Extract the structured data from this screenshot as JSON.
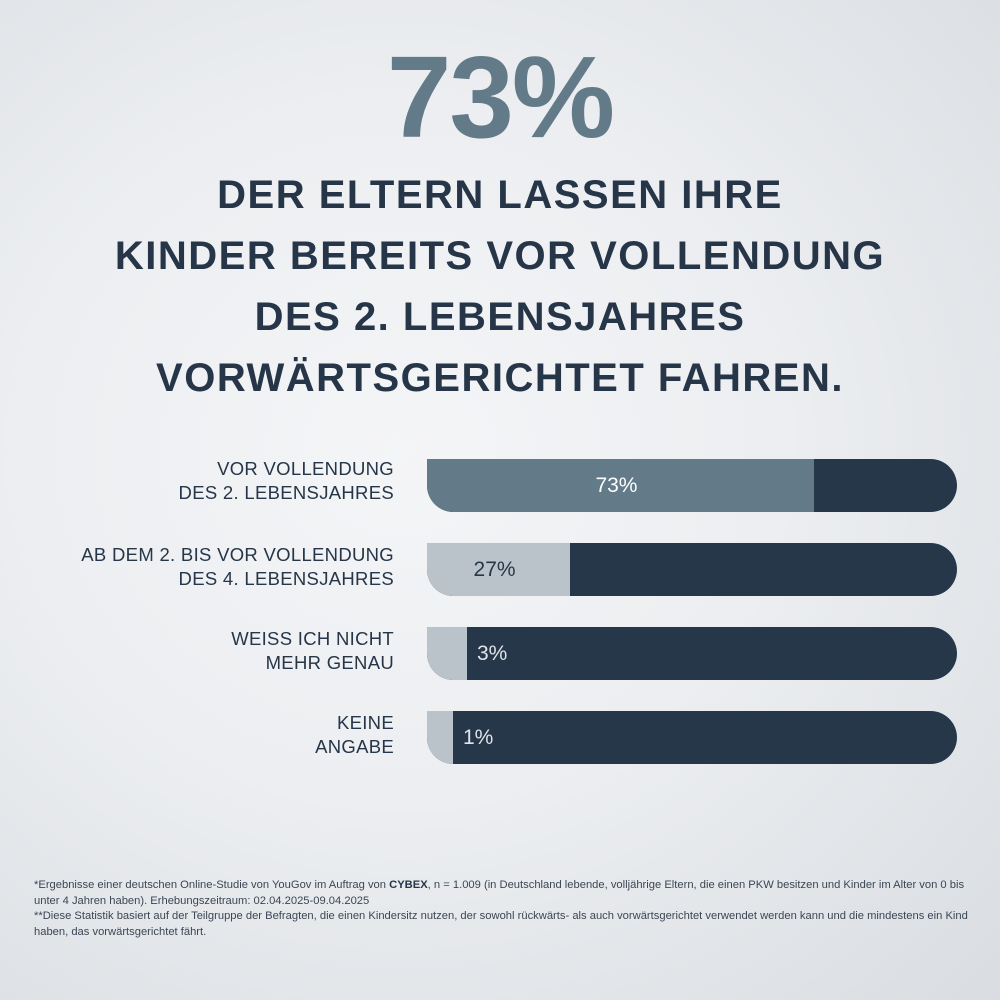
{
  "headline": {
    "big_number": "73%",
    "lines": [
      "DER ELTERN LASSEN IHRE",
      "KINDER BEREITS VOR VOLLENDUNG",
      "DES 2. LEBENSJAHRES",
      "VORWÄRTSGERICHTET FAHREN."
    ]
  },
  "colors": {
    "accent": "#637b88",
    "dark": "#26374a",
    "light": "#bac3ca"
  },
  "chart_data": {
    "type": "bar",
    "orientation": "horizontal",
    "title": "73% der Eltern lassen ihre Kinder bereits vor Vollendung des 2. Lebensjahres vorwärtsgerichtet fahren.",
    "xlim": [
      0,
      100
    ],
    "unit": "%",
    "categories": [
      [
        "VOR VOLLENDUNG",
        "DES 2. LEBENSJAHRES"
      ],
      [
        "AB DEM 2. BIS VOR VOLLENDUNG",
        "DES 4. LEBENSJAHRES"
      ],
      [
        "WEISS ICH NICHT",
        "MEHR GENAU"
      ],
      [
        "KEINE",
        "ANGABE"
      ]
    ],
    "values": [
      73,
      27,
      3,
      1
    ],
    "value_labels": [
      "73%",
      "27%",
      "3%",
      "1%"
    ],
    "highlight_index": 0
  },
  "footnote": {
    "line1_pre": "*Ergebnisse einer deutschen Online-Studie von YouGov im Auftrag von ",
    "brand": "CYBEX",
    "line1_post": ", n = 1.009 (in Deutschland lebende, volljährige Eltern, die einen PKW besitzen und Kinder im Alter von 0 bis unter 4 Jahren haben). Erhebungszeitraum: 02.04.2025-09.04.2025",
    "line2": "**Diese Statistik basiert auf der Teilgruppe der Befragten, die einen Kindersitz nutzen, der sowohl rückwärts- als auch vorwärtsgerichtet verwendet werden kann und die mindestens ein Kind haben, das vorwärtsgerichtet fährt."
  }
}
